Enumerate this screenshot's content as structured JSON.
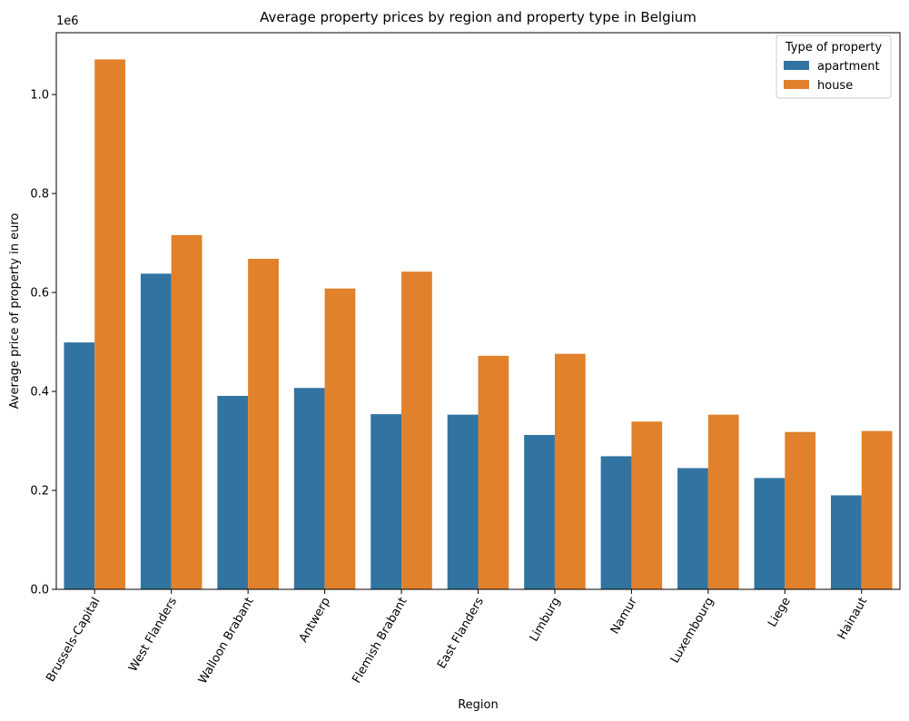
{
  "chart_data": {
    "type": "bar",
    "title": "Average property prices by region and property type in Belgium",
    "xlabel": "Region",
    "ylabel": "Average price of property in euro",
    "y_offset_label": "1e6",
    "ylim": [
      0,
      1125000
    ],
    "yticks": [
      0,
      200000,
      400000,
      600000,
      800000,
      1000000
    ],
    "ytick_labels": [
      "0.0",
      "0.2",
      "0.4",
      "0.6",
      "0.8",
      "1.0"
    ],
    "categories": [
      "Brussels-Capital",
      "West Flanders",
      "Walloon Brabant",
      "Antwerp",
      "Flemish Brabant",
      "East Flanders",
      "Limburg",
      "Namur",
      "Luxembourg",
      "Liege",
      "Hainaut"
    ],
    "series": [
      {
        "name": "apartment",
        "color": "#3274a1",
        "values": [
          499000,
          638000,
          391000,
          407000,
          354000,
          353000,
          312000,
          269000,
          245000,
          225000,
          190000
        ]
      },
      {
        "name": "house",
        "color": "#e1812c",
        "values": [
          1071000,
          716000,
          668000,
          608000,
          642000,
          472000,
          476000,
          339000,
          353000,
          318000,
          320000
        ]
      }
    ],
    "legend": {
      "title": "Type of property",
      "position": "top-right"
    },
    "grid": false
  }
}
